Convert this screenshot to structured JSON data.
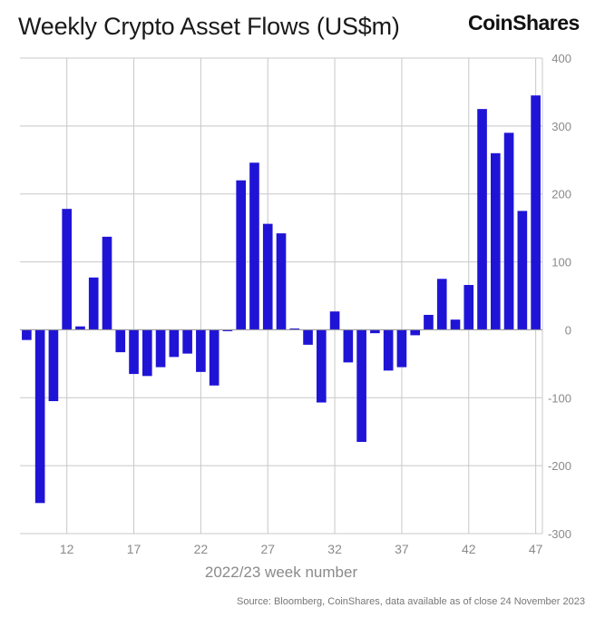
{
  "header": {
    "title": "Weekly Crypto Asset Flows (US$m)",
    "brand": "CoinShares"
  },
  "footer": {
    "source": "Source: Bloomberg, CoinShares, data available as of close 24 November 2023"
  },
  "colors": {
    "bar": "#1f14d6",
    "grid": "#c8c8c8",
    "axis_text": "#8a8a8a"
  },
  "chart_data": {
    "type": "bar",
    "title": "Weekly Crypto Asset Flows (US$m)",
    "xlabel": "2022/23 week number",
    "ylabel": "",
    "ylim": [
      -300,
      400
    ],
    "yticks": [
      400,
      300,
      200,
      100,
      0,
      -100,
      -200,
      -300
    ],
    "xtick_labels": [
      "12",
      "17",
      "22",
      "27",
      "32",
      "37",
      "42",
      "47"
    ],
    "xtick_positions": [
      12,
      17,
      22,
      27,
      32,
      37,
      42,
      47
    ],
    "xlim": [
      8.5,
      47.5
    ],
    "y_axis_position": "right",
    "grid": true,
    "x": [
      9,
      10,
      11,
      12,
      13,
      14,
      15,
      16,
      17,
      18,
      19,
      20,
      21,
      22,
      23,
      24,
      25,
      26,
      27,
      28,
      29,
      30,
      31,
      32,
      33,
      34,
      35,
      36,
      37,
      38,
      39,
      40,
      41,
      42,
      43,
      44,
      45,
      46,
      47
    ],
    "values": [
      -15,
      -255,
      -105,
      178,
      5,
      77,
      137,
      -33,
      -65,
      -68,
      -55,
      -40,
      -35,
      -62,
      -82,
      -2,
      220,
      246,
      156,
      142,
      2,
      -22,
      -107,
      27,
      -48,
      -165,
      -5,
      -60,
      -55,
      -8,
      22,
      75,
      15,
      66,
      325,
      260,
      290,
      175,
      345
    ]
  }
}
